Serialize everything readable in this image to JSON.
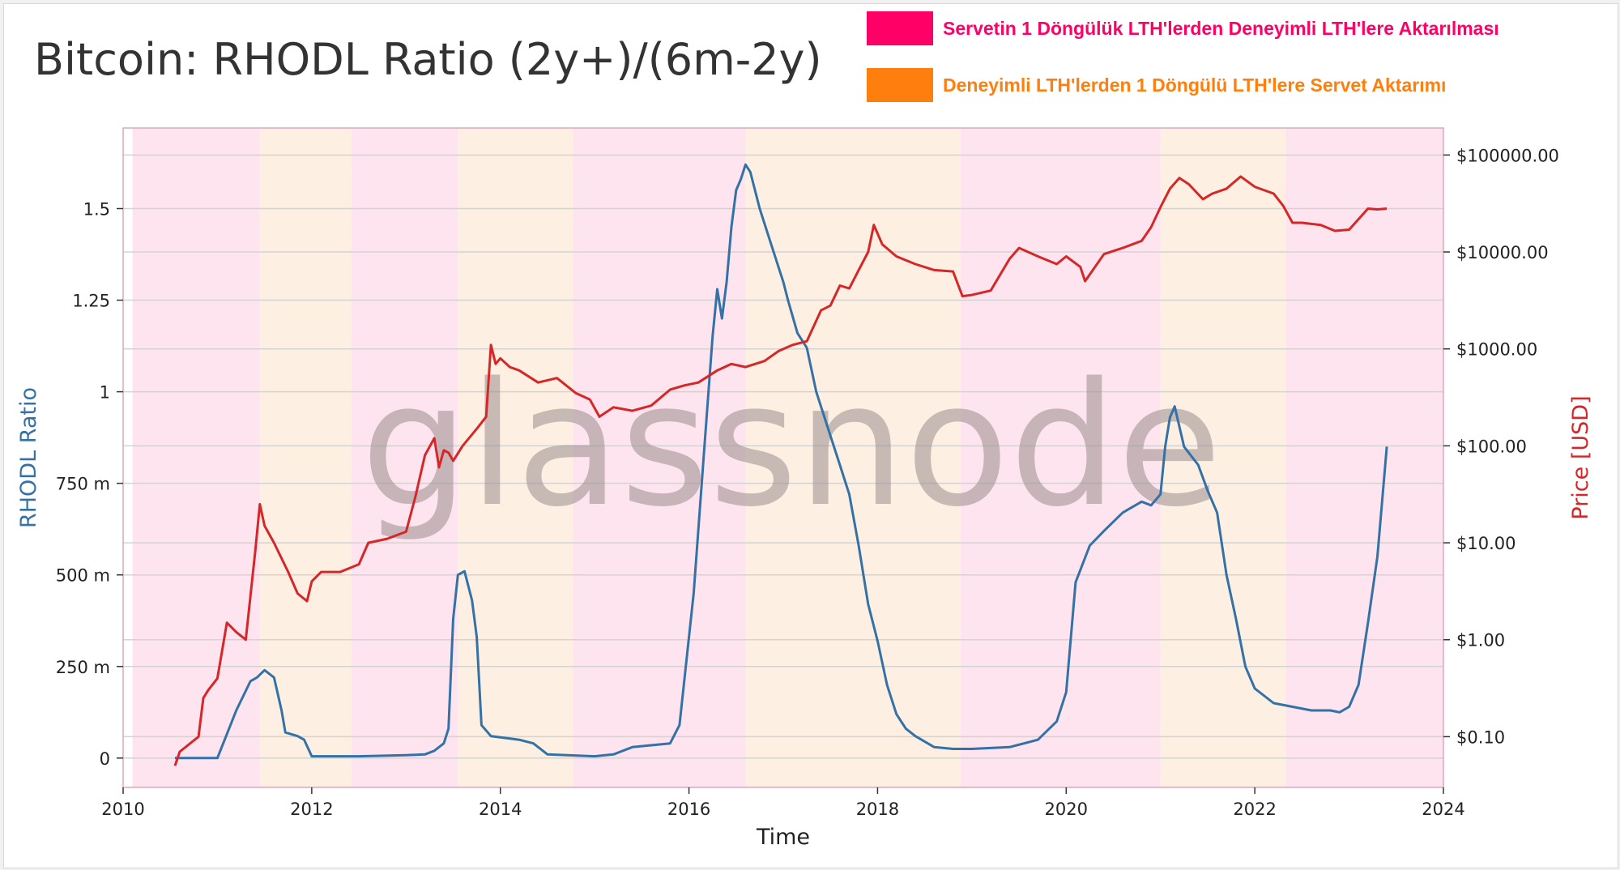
{
  "title": "Bitcoin: RHODL Ratio (2y+)/(6m-2y)",
  "legend": [
    {
      "label": "Servetin 1 Döngülük LTH'lerden Deneyimli LTH'lere Aktarılması",
      "color": "#ff0066"
    },
    {
      "label": "Deneyimli LTH'lerden 1 Döngülü LTH'lere Servet Aktarımı",
      "color": "#ff7f0e"
    }
  ],
  "watermark": "glassnode",
  "chart_data": {
    "type": "line",
    "xlabel": "Time",
    "ylabel_left": "RHODL Ratio",
    "ylabel_right": "Price [USD]",
    "x_ticks": [
      "2010",
      "2012",
      "2014",
      "2016",
      "2018",
      "2020",
      "2022",
      "2024"
    ],
    "xlim": [
      2010,
      2024
    ],
    "y_left_ticks": [
      "0",
      "250 m",
      "500 m",
      "750 m",
      "1",
      "1.25",
      "1.5"
    ],
    "y_left_tick_values": [
      0,
      0.25,
      0.5,
      0.75,
      1,
      1.25,
      1.5
    ],
    "ylim_left": [
      -0.08,
      1.72
    ],
    "y_right_ticks": [
      "$0.10",
      "$1.00",
      "$10.00",
      "$100.00",
      "$1000.00",
      "$10000.00",
      "$100000.00"
    ],
    "y_right_tick_values": [
      0.1,
      1,
      10,
      100,
      1000,
      10000,
      100000
    ],
    "y_right_scale": "log",
    "ylim_right": [
      0.03,
      190000
    ],
    "grid": true,
    "shaded_regions": [
      {
        "start": 2010.1,
        "end": 2011.45,
        "kind": "pink"
      },
      {
        "start": 2011.45,
        "end": 2012.42,
        "kind": "orange"
      },
      {
        "start": 2012.42,
        "end": 2013.55,
        "kind": "pink"
      },
      {
        "start": 2013.55,
        "end": 2014.77,
        "kind": "orange"
      },
      {
        "start": 2014.77,
        "end": 2016.6,
        "kind": "pink"
      },
      {
        "start": 2016.6,
        "end": 2018.88,
        "kind": "orange"
      },
      {
        "start": 2018.88,
        "end": 2021.0,
        "kind": "pink"
      },
      {
        "start": 2021.0,
        "end": 2022.33,
        "kind": "orange"
      },
      {
        "start": 2022.33,
        "end": 2024.0,
        "kind": "pink"
      }
    ],
    "series": [
      {
        "name": "RHODL Ratio",
        "color": "#3471a6",
        "axis": "left",
        "x": [
          2010.55,
          2011.0,
          2011.2,
          2011.35,
          2011.42,
          2011.5,
          2011.6,
          2011.68,
          2011.72,
          2011.85,
          2011.92,
          2012.0,
          2012.5,
          2013.0,
          2013.2,
          2013.3,
          2013.4,
          2013.45,
          2013.5,
          2013.55,
          2013.62,
          2013.7,
          2013.75,
          2013.8,
          2013.9,
          2014.2,
          2014.35,
          2014.5,
          2015.0,
          2015.2,
          2015.4,
          2015.6,
          2015.8,
          2015.9,
          2016.05,
          2016.15,
          2016.25,
          2016.3,
          2016.35,
          2016.4,
          2016.45,
          2016.5,
          2016.55,
          2016.6,
          2016.65,
          2016.75,
          2016.85,
          2017.0,
          2017.05,
          2017.15,
          2017.25,
          2017.35,
          2017.5,
          2017.6,
          2017.7,
          2017.8,
          2017.9,
          2018.0,
          2018.1,
          2018.2,
          2018.3,
          2018.4,
          2018.6,
          2018.8,
          2019.0,
          2019.4,
          2019.7,
          2019.9,
          2020.0,
          2020.1,
          2020.25,
          2020.4,
          2020.6,
          2020.8,
          2020.9,
          2021.0,
          2021.05,
          2021.1,
          2021.15,
          2021.25,
          2021.4,
          2021.5,
          2021.6,
          2021.7,
          2021.8,
          2021.9,
          2022.0,
          2022.2,
          2022.4,
          2022.6,
          2022.8,
          2022.9,
          2023.0,
          2023.1,
          2023.2,
          2023.3,
          2023.35,
          2023.4
        ],
        "y": [
          0,
          0,
          0.13,
          0.21,
          0.22,
          0.24,
          0.22,
          0.13,
          0.07,
          0.06,
          0.05,
          0.005,
          0.005,
          0.008,
          0.01,
          0.02,
          0.04,
          0.08,
          0.38,
          0.5,
          0.51,
          0.43,
          0.33,
          0.09,
          0.06,
          0.05,
          0.04,
          0.01,
          0.005,
          0.01,
          0.03,
          0.035,
          0.04,
          0.09,
          0.45,
          0.8,
          1.15,
          1.28,
          1.2,
          1.3,
          1.45,
          1.55,
          1.58,
          1.62,
          1.6,
          1.5,
          1.42,
          1.3,
          1.25,
          1.16,
          1.12,
          1.0,
          0.88,
          0.8,
          0.72,
          0.58,
          0.42,
          0.32,
          0.2,
          0.12,
          0.08,
          0.06,
          0.03,
          0.025,
          0.025,
          0.03,
          0.05,
          0.1,
          0.18,
          0.48,
          0.58,
          0.62,
          0.67,
          0.7,
          0.69,
          0.72,
          0.85,
          0.93,
          0.96,
          0.85,
          0.8,
          0.73,
          0.67,
          0.5,
          0.38,
          0.25,
          0.19,
          0.15,
          0.14,
          0.13,
          0.13,
          0.125,
          0.14,
          0.2,
          0.37,
          0.55,
          0.7,
          0.85
        ]
      },
      {
        "name": "Price",
        "color": "#d62728",
        "axis": "right",
        "x": [
          2010.55,
          2010.6,
          2010.8,
          2010.85,
          2010.9,
          2011.0,
          2011.1,
          2011.2,
          2011.3,
          2011.4,
          2011.45,
          2011.5,
          2011.6,
          2011.75,
          2011.85,
          2011.95,
          2012.0,
          2012.1,
          2012.3,
          2012.5,
          2012.6,
          2012.8,
          2013.0,
          2013.1,
          2013.2,
          2013.3,
          2013.35,
          2013.4,
          2013.45,
          2013.5,
          2013.6,
          2013.75,
          2013.85,
          2013.9,
          2013.95,
          2014.0,
          2014.1,
          2014.2,
          2014.4,
          2014.6,
          2014.8,
          2014.95,
          2015.05,
          2015.2,
          2015.4,
          2015.6,
          2015.8,
          2015.95,
          2016.1,
          2016.3,
          2016.45,
          2016.6,
          2016.8,
          2016.95,
          2017.1,
          2017.25,
          2017.4,
          2017.5,
          2017.6,
          2017.7,
          2017.8,
          2017.9,
          2017.96,
          2018.05,
          2018.2,
          2018.4,
          2018.6,
          2018.8,
          2018.9,
          2019.0,
          2019.2,
          2019.4,
          2019.5,
          2019.7,
          2019.9,
          2020.0,
          2020.15,
          2020.2,
          2020.4,
          2020.6,
          2020.8,
          2020.9,
          2021.0,
          2021.1,
          2021.2,
          2021.3,
          2021.45,
          2021.55,
          2021.7,
          2021.85,
          2022.0,
          2022.2,
          2022.3,
          2022.4,
          2022.5,
          2022.7,
          2022.85,
          2023.0,
          2023.2,
          2023.3,
          2023.4
        ],
        "y": [
          0.05,
          0.07,
          0.1,
          0.25,
          0.3,
          0.4,
          1.5,
          1.2,
          1.0,
          8,
          25,
          15,
          10,
          5,
          3,
          2.5,
          4,
          5,
          5,
          6,
          10,
          11,
          13,
          30,
          80,
          120,
          60,
          90,
          85,
          70,
          100,
          150,
          200,
          1100,
          700,
          800,
          650,
          600,
          450,
          500,
          350,
          300,
          200,
          250,
          230,
          260,
          380,
          420,
          450,
          600,
          700,
          650,
          750,
          950,
          1100,
          1200,
          2500,
          2800,
          4500,
          4200,
          6500,
          10000,
          19000,
          12000,
          9000,
          7500,
          6500,
          6300,
          3500,
          3600,
          4000,
          8500,
          11000,
          9000,
          7500,
          9000,
          7000,
          5000,
          9500,
          11000,
          13000,
          18000,
          29000,
          45000,
          58000,
          50000,
          35000,
          40000,
          45000,
          60000,
          47000,
          40000,
          30000,
          20000,
          20000,
          19000,
          16500,
          17000,
          28000,
          27500,
          28000
        ]
      }
    ]
  }
}
